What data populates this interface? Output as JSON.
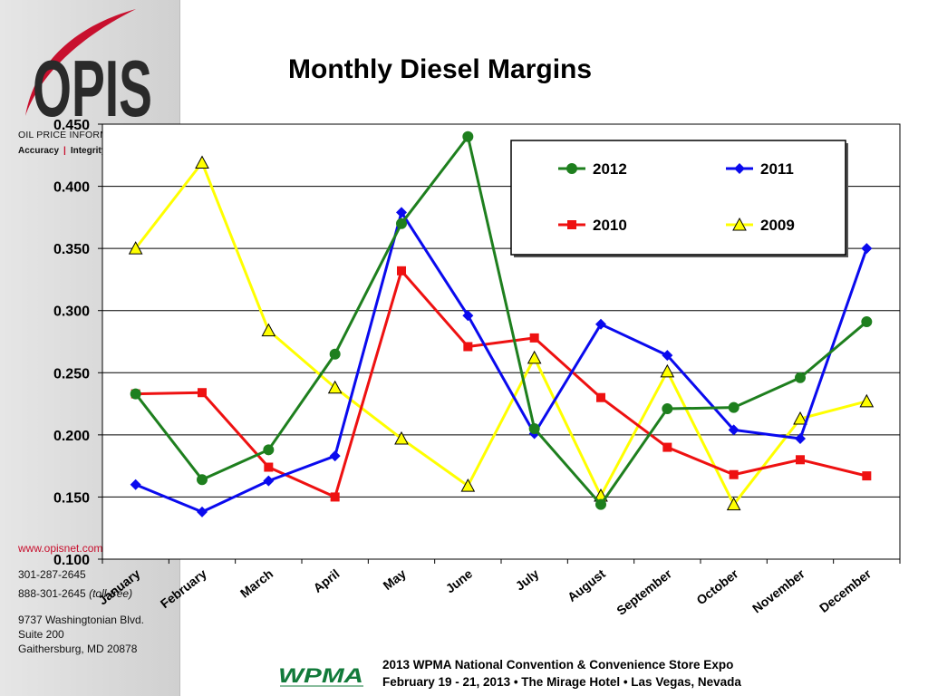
{
  "sidebar": {
    "logo_text": "OPIS",
    "company_name": "OIL PRICE INFORMATION SERVICE",
    "tagline": [
      "Accuracy",
      "Integrity"
    ],
    "website": "www.opisnet.com",
    "phone": "301-287-2645",
    "tollfree_number": "888-301-2645",
    "tollfree_note": "(toll-free)",
    "address": [
      "9737 Washingtonian Blvd.",
      "Suite 200",
      "Gaithersburg, MD 20878"
    ]
  },
  "footer": {
    "line1": "2013 WPMA National Convention & Convenience Store Expo",
    "line2": "February 19 - 21, 2013 • The Mirage Hotel • Las Vegas, Nevada",
    "logo_text": "WPMA"
  },
  "colors": {
    "2012": "#1e7f1e",
    "2011": "#0a0aee",
    "2010": "#ee1111",
    "2009": "#ffff00",
    "brand_red": "#c8102e"
  },
  "chart_data": {
    "type": "line",
    "title": "Monthly Diesel Margins",
    "xlabel": "",
    "ylabel": "",
    "categories": [
      "January",
      "February",
      "March",
      "April",
      "May",
      "June",
      "July",
      "August",
      "September",
      "October",
      "November",
      "December"
    ],
    "ylim": [
      0.1,
      0.45
    ],
    "yticks": [
      "0.100",
      "0.150",
      "0.200",
      "0.250",
      "0.300",
      "0.350",
      "0.400",
      "0.450"
    ],
    "grid": true,
    "legend_position": "top-right",
    "series": [
      {
        "name": "2012",
        "marker": "circle",
        "color": "#1e7f1e",
        "values": [
          0.233,
          0.164,
          0.188,
          0.265,
          0.37,
          0.44,
          0.205,
          0.144,
          0.221,
          0.222,
          0.246,
          0.291
        ]
      },
      {
        "name": "2011",
        "marker": "diamond",
        "color": "#0a0aee",
        "values": [
          0.16,
          0.138,
          0.163,
          0.183,
          0.379,
          0.296,
          0.201,
          0.289,
          0.264,
          0.204,
          0.197,
          0.35
        ]
      },
      {
        "name": "2010",
        "marker": "square",
        "color": "#ee1111",
        "values": [
          0.233,
          0.234,
          0.174,
          0.15,
          0.332,
          0.271,
          0.278,
          0.23,
          0.19,
          0.168,
          0.18,
          0.167
        ]
      },
      {
        "name": "2009",
        "marker": "triangle",
        "color": "#ffff00",
        "values": [
          0.35,
          0.419,
          0.284,
          0.238,
          0.197,
          0.159,
          0.262,
          0.151,
          0.251,
          0.144,
          0.213,
          0.227
        ]
      }
    ]
  }
}
